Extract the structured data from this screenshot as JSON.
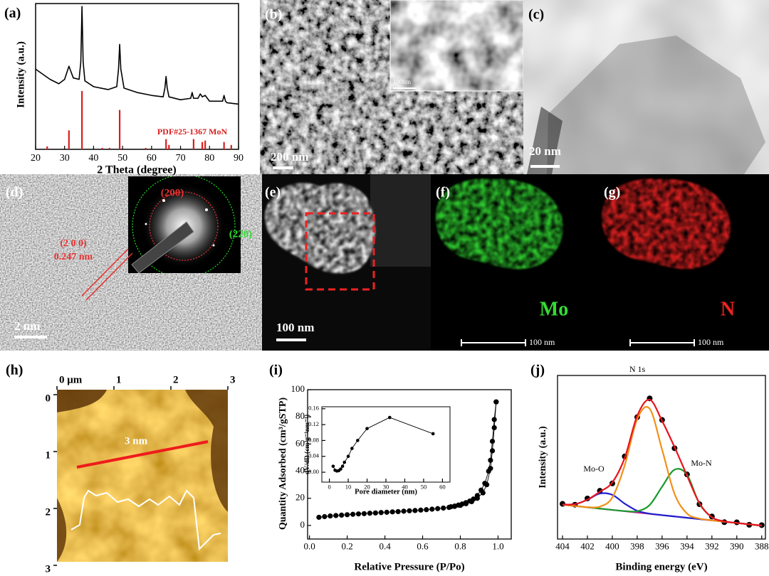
{
  "panel_labels": [
    "(a)",
    "(b)",
    "(c)",
    "(d)",
    "(e)",
    "(f)",
    "(g)",
    "(h)",
    "(i)",
    "(j)"
  ],
  "images": {
    "b": {
      "scale_bar": "200 nm",
      "inset_scale_bar": "100nm"
    },
    "c": {
      "scale_bar": "20 nm"
    },
    "d": {
      "lattice_plane": "(2 0 0)",
      "d_spacing": "0.247 nm",
      "saed_inner": "(200)",
      "saed_outer": "(220)",
      "scale_bar": "2 nm"
    },
    "e": {
      "scale_bar": "100 nm"
    },
    "f": {
      "element": "Mo",
      "scale_bar": "100 nm"
    },
    "g": {
      "element": "N",
      "scale_bar": "100 nm"
    }
  },
  "chart_data": [
    {
      "type": "line",
      "xlabel": "2 Theta (degree)",
      "ylabel": "Intensity (a.u.)",
      "xlim": [
        20,
        90
      ],
      "xticks": [
        20,
        30,
        40,
        50,
        60,
        70,
        80,
        90
      ],
      "ylim": [
        0,
        100
      ],
      "series": [
        {
          "color": "#000000",
          "x": [
            20,
            25,
            28,
            30,
            31.5,
            33,
            35,
            35.6,
            36,
            36.4,
            37,
            40,
            45,
            48,
            48.6,
            49,
            49.4,
            50.5,
            55,
            60,
            64,
            64.6,
            65,
            65.4,
            66,
            70,
            73.5,
            74,
            74.5,
            76,
            76.8,
            77.5,
            78.5,
            80,
            84.5,
            85,
            85.5,
            86,
            90
          ],
          "values": [
            55,
            48,
            45,
            48,
            57,
            49,
            48,
            60,
            98,
            60,
            47,
            43,
            41,
            43,
            55,
            72,
            55,
            42,
            39,
            37,
            36,
            42,
            50,
            42,
            36,
            34,
            35,
            39,
            35,
            35,
            38,
            36,
            37,
            33,
            33,
            37,
            33,
            32,
            31
          ]
        },
        {
          "name": "PDF#25-1367 MoN",
          "type": "stick",
          "color": "#d81e1e",
          "x": [
            24,
            31.5,
            36,
            43,
            45.5,
            49,
            58,
            65,
            66,
            74.5,
            77.5,
            78.5,
            85,
            87.5
          ],
          "values": [
            2,
            13,
            40,
            1,
            1,
            27,
            1,
            7,
            3,
            7,
            5,
            6,
            5,
            3
          ]
        }
      ]
    },
    {
      "type": "image",
      "xlim": [
        0,
        3
      ],
      "xticks": [
        {
          "value": 0,
          "label": "0 μm"
        },
        1,
        2,
        3
      ],
      "ylim": [
        0,
        3
      ],
      "yticks": [
        0,
        1,
        2,
        3
      ],
      "y_inverted": true,
      "annotations": [
        "3 nm"
      ]
    },
    {
      "type": "scatter",
      "xlabel": "Relative Pressure (P/Po)",
      "ylabel": "Quantity Adsorbed (cm³/gSTP)",
      "xlim": [
        -0.01,
        1.07
      ],
      "xticks": [
        {
          "value": 0,
          "label": "0.0"
        },
        0.2,
        0.4,
        0.6,
        0.8,
        {
          "value": 1,
          "label": "1.0"
        }
      ],
      "ylim": [
        -10,
        100
      ],
      "yticks": [
        0,
        20,
        40,
        60,
        80,
        100
      ],
      "series": [
        {
          "color": "#000000",
          "connected": true,
          "x": [
            0.05,
            0.08,
            0.11,
            0.14,
            0.17,
            0.2,
            0.23,
            0.26,
            0.29,
            0.32,
            0.35,
            0.38,
            0.41,
            0.44,
            0.47,
            0.5,
            0.53,
            0.56,
            0.59,
            0.62,
            0.65,
            0.68,
            0.71,
            0.74,
            0.77,
            0.8,
            0.83,
            0.86,
            0.89,
            0.92,
            0.94,
            0.96,
            0.97,
            0.98,
            0.99
          ],
          "values": [
            6,
            6.5,
            7,
            7.3,
            7.6,
            7.9,
            8.2,
            8.5,
            8.7,
            9,
            9.2,
            9.5,
            9.7,
            10,
            10.2,
            10.5,
            10.8,
            11,
            11.3,
            11.6,
            12,
            12.4,
            12.8,
            13.3,
            14,
            14.8,
            16,
            17.5,
            20,
            24,
            30,
            42,
            55,
            72,
            91
          ]
        },
        {
          "color": "#000000",
          "connected": true,
          "x": [
            0.99,
            0.98,
            0.97,
            0.96,
            0.95,
            0.93,
            0.91,
            0.89,
            0.87,
            0.85,
            0.83,
            0.81,
            0.79,
            0.77,
            0.75
          ],
          "values": [
            91,
            78,
            62,
            48,
            40,
            31,
            26,
            22,
            19.5,
            18,
            16.8,
            15.8,
            15,
            14.3,
            13.8
          ]
        }
      ]
    },
    {
      "type": "scatter",
      "xlabel": "Pore diameter (nm)",
      "ylabel": "dV/dD (cm³g⁻¹nm⁻¹)",
      "xlim": [
        -4,
        64
      ],
      "xticks": [
        0,
        10,
        20,
        30,
        40,
        50,
        60
      ],
      "ylim": [
        -0.025,
        0.165
      ],
      "yticks": [
        {
          "value": 0,
          "label": "0.00"
        },
        0.04,
        0.08,
        0.12,
        0.16
      ],
      "series": [
        {
          "color": "#000000",
          "connected": true,
          "x": [
            2,
            3,
            4,
            5,
            6,
            7,
            8,
            10,
            12,
            15,
            20,
            32,
            55
          ],
          "values": [
            0.015,
            0.005,
            0.003,
            0.004,
            0.008,
            0.015,
            0.025,
            0.04,
            0.06,
            0.08,
            0.11,
            0.138,
            0.097
          ]
        }
      ]
    },
    {
      "type": "line",
      "xlabel": "Binding energy (eV)",
      "ylabel": "Intensity (a.u.)",
      "xlim": [
        404.4,
        387.7
      ],
      "xticks": [
        404,
        402,
        400,
        398,
        396,
        394,
        392,
        390,
        388
      ],
      "ylim": [
        0,
        100
      ],
      "smooth": true,
      "annotations": [
        "N 1s",
        "Mo-O",
        "Mo-N"
      ],
      "series": [
        {
          "type": "scatter",
          "color": "#000000",
          "x": [
            404,
            403,
            402,
            401,
            400,
            399,
            398,
            397,
            396,
            395,
            394,
            393,
            392,
            391,
            390,
            389,
            388
          ],
          "values": [
            21.5,
            21,
            24.8,
            29.5,
            34,
            50.5,
            74.5,
            86,
            72.8,
            55.5,
            39.5,
            21.3,
            13.8,
            10.3,
            10.2,
            8.7,
            8.5
          ]
        },
        {
          "color": "#c2288a",
          "x": [
            404,
            403,
            402,
            401,
            400,
            399,
            398,
            397,
            396,
            395,
            394,
            393,
            392,
            391,
            390,
            389,
            388
          ],
          "values": [
            21,
            20.2,
            19.4,
            18.6,
            17.8,
            17,
            16.2,
            15.4,
            14.6,
            13.8,
            13,
            12.2,
            11.4,
            10.6,
            9.8,
            9,
            8.2
          ]
        },
        {
          "color": "#1f1fd0",
          "x": [
            404,
            403,
            402,
            401,
            400,
            399,
            398,
            397,
            396,
            395,
            394,
            393,
            392,
            391,
            390,
            389,
            388
          ],
          "values": [
            21.1,
            21.3,
            24,
            27.8,
            27,
            21.6,
            17.3,
            15.5,
            14.6,
            13.8,
            13,
            12.2,
            11.4,
            10.6,
            9.8,
            9,
            8.2
          ]
        },
        {
          "color": "#1a9a2f",
          "x": [
            404,
            403,
            402,
            401,
            400,
            399,
            398,
            397,
            396,
            395,
            394,
            393,
            392,
            391,
            390,
            389,
            388
          ],
          "values": [
            21,
            20.2,
            19.4,
            18.6,
            17.8,
            17.1,
            17,
            20.8,
            32,
            42.4,
            39.3,
            21.6,
            13.3,
            10.8,
            9.8,
            9,
            8.2
          ]
        },
        {
          "color": "#f39019",
          "x": [
            404,
            403,
            402,
            401,
            400,
            399,
            398,
            397,
            396,
            395,
            394,
            393,
            392,
            391,
            390,
            389,
            388
          ],
          "values": [
            21,
            20.2,
            19.5,
            19.8,
            25.4,
            45.1,
            73.3,
            79.7,
            54.6,
            27.6,
            15.6,
            12.5,
            11.4,
            10.6,
            9.8,
            9,
            8.2
          ]
        },
        {
          "color": "#e8141e",
          "x": [
            404,
            403,
            402,
            401,
            400,
            399,
            398,
            397,
            396,
            395,
            394,
            393,
            392,
            391,
            390,
            389,
            388
          ],
          "values": [
            21.1,
            21.3,
            24.1,
            28.9,
            34.6,
            49.7,
            75.3,
            85.2,
            72.2,
            56.2,
            38.8,
            21.9,
            13.3,
            10.8,
            9.8,
            9,
            8.2
          ]
        }
      ]
    }
  ]
}
